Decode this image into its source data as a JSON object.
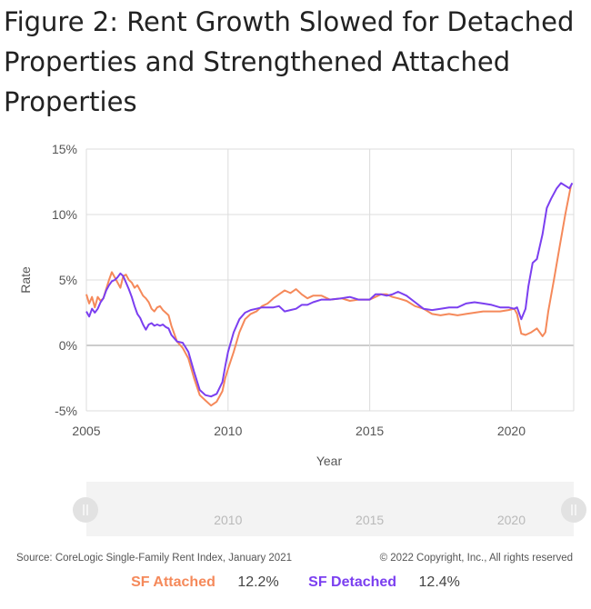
{
  "title": "Figure 2: Rent Growth Slowed for Detached Properties and Strengthened Attached Properties",
  "source": "Source: CoreLogic Single-Family Rent Index, January 2021",
  "copyright": "© 2022 Copyright, Inc., All rights reserved",
  "legend": [
    {
      "name": "SF Attached",
      "value": "12.2%",
      "color": "#f5895a"
    },
    {
      "name": "SF Detached",
      "value": "12.4%",
      "color": "#7b3ff0"
    }
  ],
  "navigator": {
    "ticks": [
      "2010",
      "2015",
      "2020"
    ],
    "handle_color": "#e2e2e2",
    "track_color": "#f3f3f3"
  },
  "chart_data": {
    "type": "line",
    "title": "",
    "xlabel": "Year",
    "ylabel": "Rate",
    "xlim": [
      2005,
      2022.2
    ],
    "ylim": [
      -5,
      15
    ],
    "xticks": [
      "2005",
      "2010",
      "2015",
      "2020"
    ],
    "yticks": [
      "15%",
      "10%",
      "5%",
      "0%",
      "-5%"
    ],
    "grid": true,
    "legend_position": "bottom",
    "series": [
      {
        "name": "SF Attached",
        "color": "#f5895a",
        "x": [
          2005.0,
          2005.1,
          2005.2,
          2005.3,
          2005.4,
          2005.5,
          2005.6,
          2005.7,
          2005.8,
          2005.9,
          2006.0,
          2006.1,
          2006.2,
          2006.3,
          2006.4,
          2006.5,
          2006.6,
          2006.7,
          2006.8,
          2006.9,
          2007.0,
          2007.1,
          2007.2,
          2007.3,
          2007.4,
          2007.5,
          2007.6,
          2007.7,
          2007.8,
          2007.9,
          2008.0,
          2008.2,
          2008.4,
          2008.6,
          2008.8,
          2009.0,
          2009.2,
          2009.4,
          2009.6,
          2009.8,
          2009.9,
          2010.0,
          2010.2,
          2010.4,
          2010.6,
          2010.8,
          2011.0,
          2011.2,
          2011.4,
          2011.6,
          2011.8,
          2012.0,
          2012.2,
          2012.4,
          2012.6,
          2012.8,
          2013.0,
          2013.3,
          2013.6,
          2014.0,
          2014.3,
          2014.6,
          2015.0,
          2015.2,
          2015.4,
          2015.6,
          2015.8,
          2016.0,
          2016.3,
          2016.6,
          2016.9,
          2017.2,
          2017.5,
          2017.8,
          2018.1,
          2018.4,
          2018.7,
          2019.0,
          2019.3,
          2019.6,
          2019.9,
          2020.1,
          2020.2,
          2020.35,
          2020.5,
          2020.7,
          2020.9,
          2021.1,
          2021.2,
          2021.3,
          2021.5,
          2021.7,
          2021.9,
          2022.1
        ],
        "y": [
          3.9,
          3.2,
          3.7,
          2.9,
          3.7,
          3.4,
          3.6,
          4.3,
          5.0,
          5.6,
          5.2,
          4.8,
          4.4,
          5.3,
          5.4,
          5.0,
          4.8,
          4.4,
          4.6,
          4.2,
          3.8,
          3.6,
          3.3,
          2.8,
          2.6,
          2.9,
          3.0,
          2.7,
          2.5,
          2.3,
          1.5,
          0.3,
          -0.2,
          -1.0,
          -2.5,
          -3.8,
          -4.2,
          -4.6,
          -4.3,
          -3.5,
          -2.5,
          -1.8,
          -0.5,
          1.0,
          2.0,
          2.4,
          2.6,
          3.0,
          3.2,
          3.6,
          3.9,
          4.2,
          4.0,
          4.3,
          3.9,
          3.6,
          3.8,
          3.8,
          3.5,
          3.6,
          3.4,
          3.5,
          3.5,
          3.7,
          3.9,
          3.9,
          3.7,
          3.6,
          3.4,
          3.0,
          2.8,
          2.4,
          2.3,
          2.4,
          2.3,
          2.4,
          2.5,
          2.6,
          2.6,
          2.6,
          2.7,
          2.8,
          2.4,
          0.9,
          0.8,
          1.0,
          1.3,
          0.7,
          1.0,
          2.6,
          5.0,
          7.5,
          10.0,
          12.2
        ]
      },
      {
        "name": "SF Detached",
        "color": "#7b3ff0",
        "x": [
          2005.0,
          2005.1,
          2005.2,
          2005.3,
          2005.4,
          2005.5,
          2005.6,
          2005.7,
          2005.8,
          2005.9,
          2006.0,
          2006.1,
          2006.2,
          2006.3,
          2006.4,
          2006.5,
          2006.6,
          2006.7,
          2006.8,
          2006.9,
          2007.0,
          2007.1,
          2007.2,
          2007.3,
          2007.4,
          2007.5,
          2007.6,
          2007.7,
          2007.8,
          2007.9,
          2008.0,
          2008.2,
          2008.4,
          2008.6,
          2008.8,
          2009.0,
          2009.2,
          2009.4,
          2009.6,
          2009.8,
          2009.9,
          2010.0,
          2010.2,
          2010.4,
          2010.6,
          2010.8,
          2011.0,
          2011.2,
          2011.4,
          2011.6,
          2011.8,
          2012.0,
          2012.2,
          2012.4,
          2012.6,
          2012.8,
          2013.0,
          2013.3,
          2013.6,
          2014.0,
          2014.3,
          2014.6,
          2015.0,
          2015.2,
          2015.4,
          2015.6,
          2015.8,
          2016.0,
          2016.3,
          2016.6,
          2016.9,
          2017.2,
          2017.5,
          2017.8,
          2018.1,
          2018.4,
          2018.7,
          2019.0,
          2019.3,
          2019.6,
          2019.9,
          2020.1,
          2020.2,
          2020.35,
          2020.5,
          2020.6,
          2020.75,
          2020.9,
          2021.1,
          2021.25,
          2021.4,
          2021.6,
          2021.75,
          2021.9,
          2022.05,
          2022.15
        ],
        "y": [
          2.6,
          2.2,
          2.8,
          2.5,
          2.8,
          3.3,
          3.6,
          4.2,
          4.6,
          4.9,
          5.0,
          5.2,
          5.5,
          5.3,
          4.8,
          4.3,
          3.7,
          3.0,
          2.4,
          2.1,
          1.6,
          1.2,
          1.6,
          1.7,
          1.5,
          1.6,
          1.5,
          1.6,
          1.4,
          1.3,
          0.8,
          0.3,
          0.2,
          -0.5,
          -2.0,
          -3.4,
          -3.8,
          -3.9,
          -3.7,
          -2.8,
          -1.6,
          -0.5,
          1.0,
          2.0,
          2.5,
          2.7,
          2.8,
          2.9,
          2.9,
          2.9,
          3.0,
          2.6,
          2.7,
          2.8,
          3.1,
          3.1,
          3.3,
          3.5,
          3.5,
          3.6,
          3.7,
          3.5,
          3.5,
          3.9,
          3.9,
          3.8,
          3.9,
          4.1,
          3.8,
          3.3,
          2.8,
          2.7,
          2.8,
          2.9,
          2.9,
          3.2,
          3.3,
          3.2,
          3.1,
          2.9,
          2.9,
          2.8,
          2.9,
          2.0,
          2.8,
          4.5,
          6.3,
          6.6,
          8.5,
          10.5,
          11.2,
          12.0,
          12.4,
          12.2,
          12.0,
          12.4
        ]
      }
    ]
  }
}
